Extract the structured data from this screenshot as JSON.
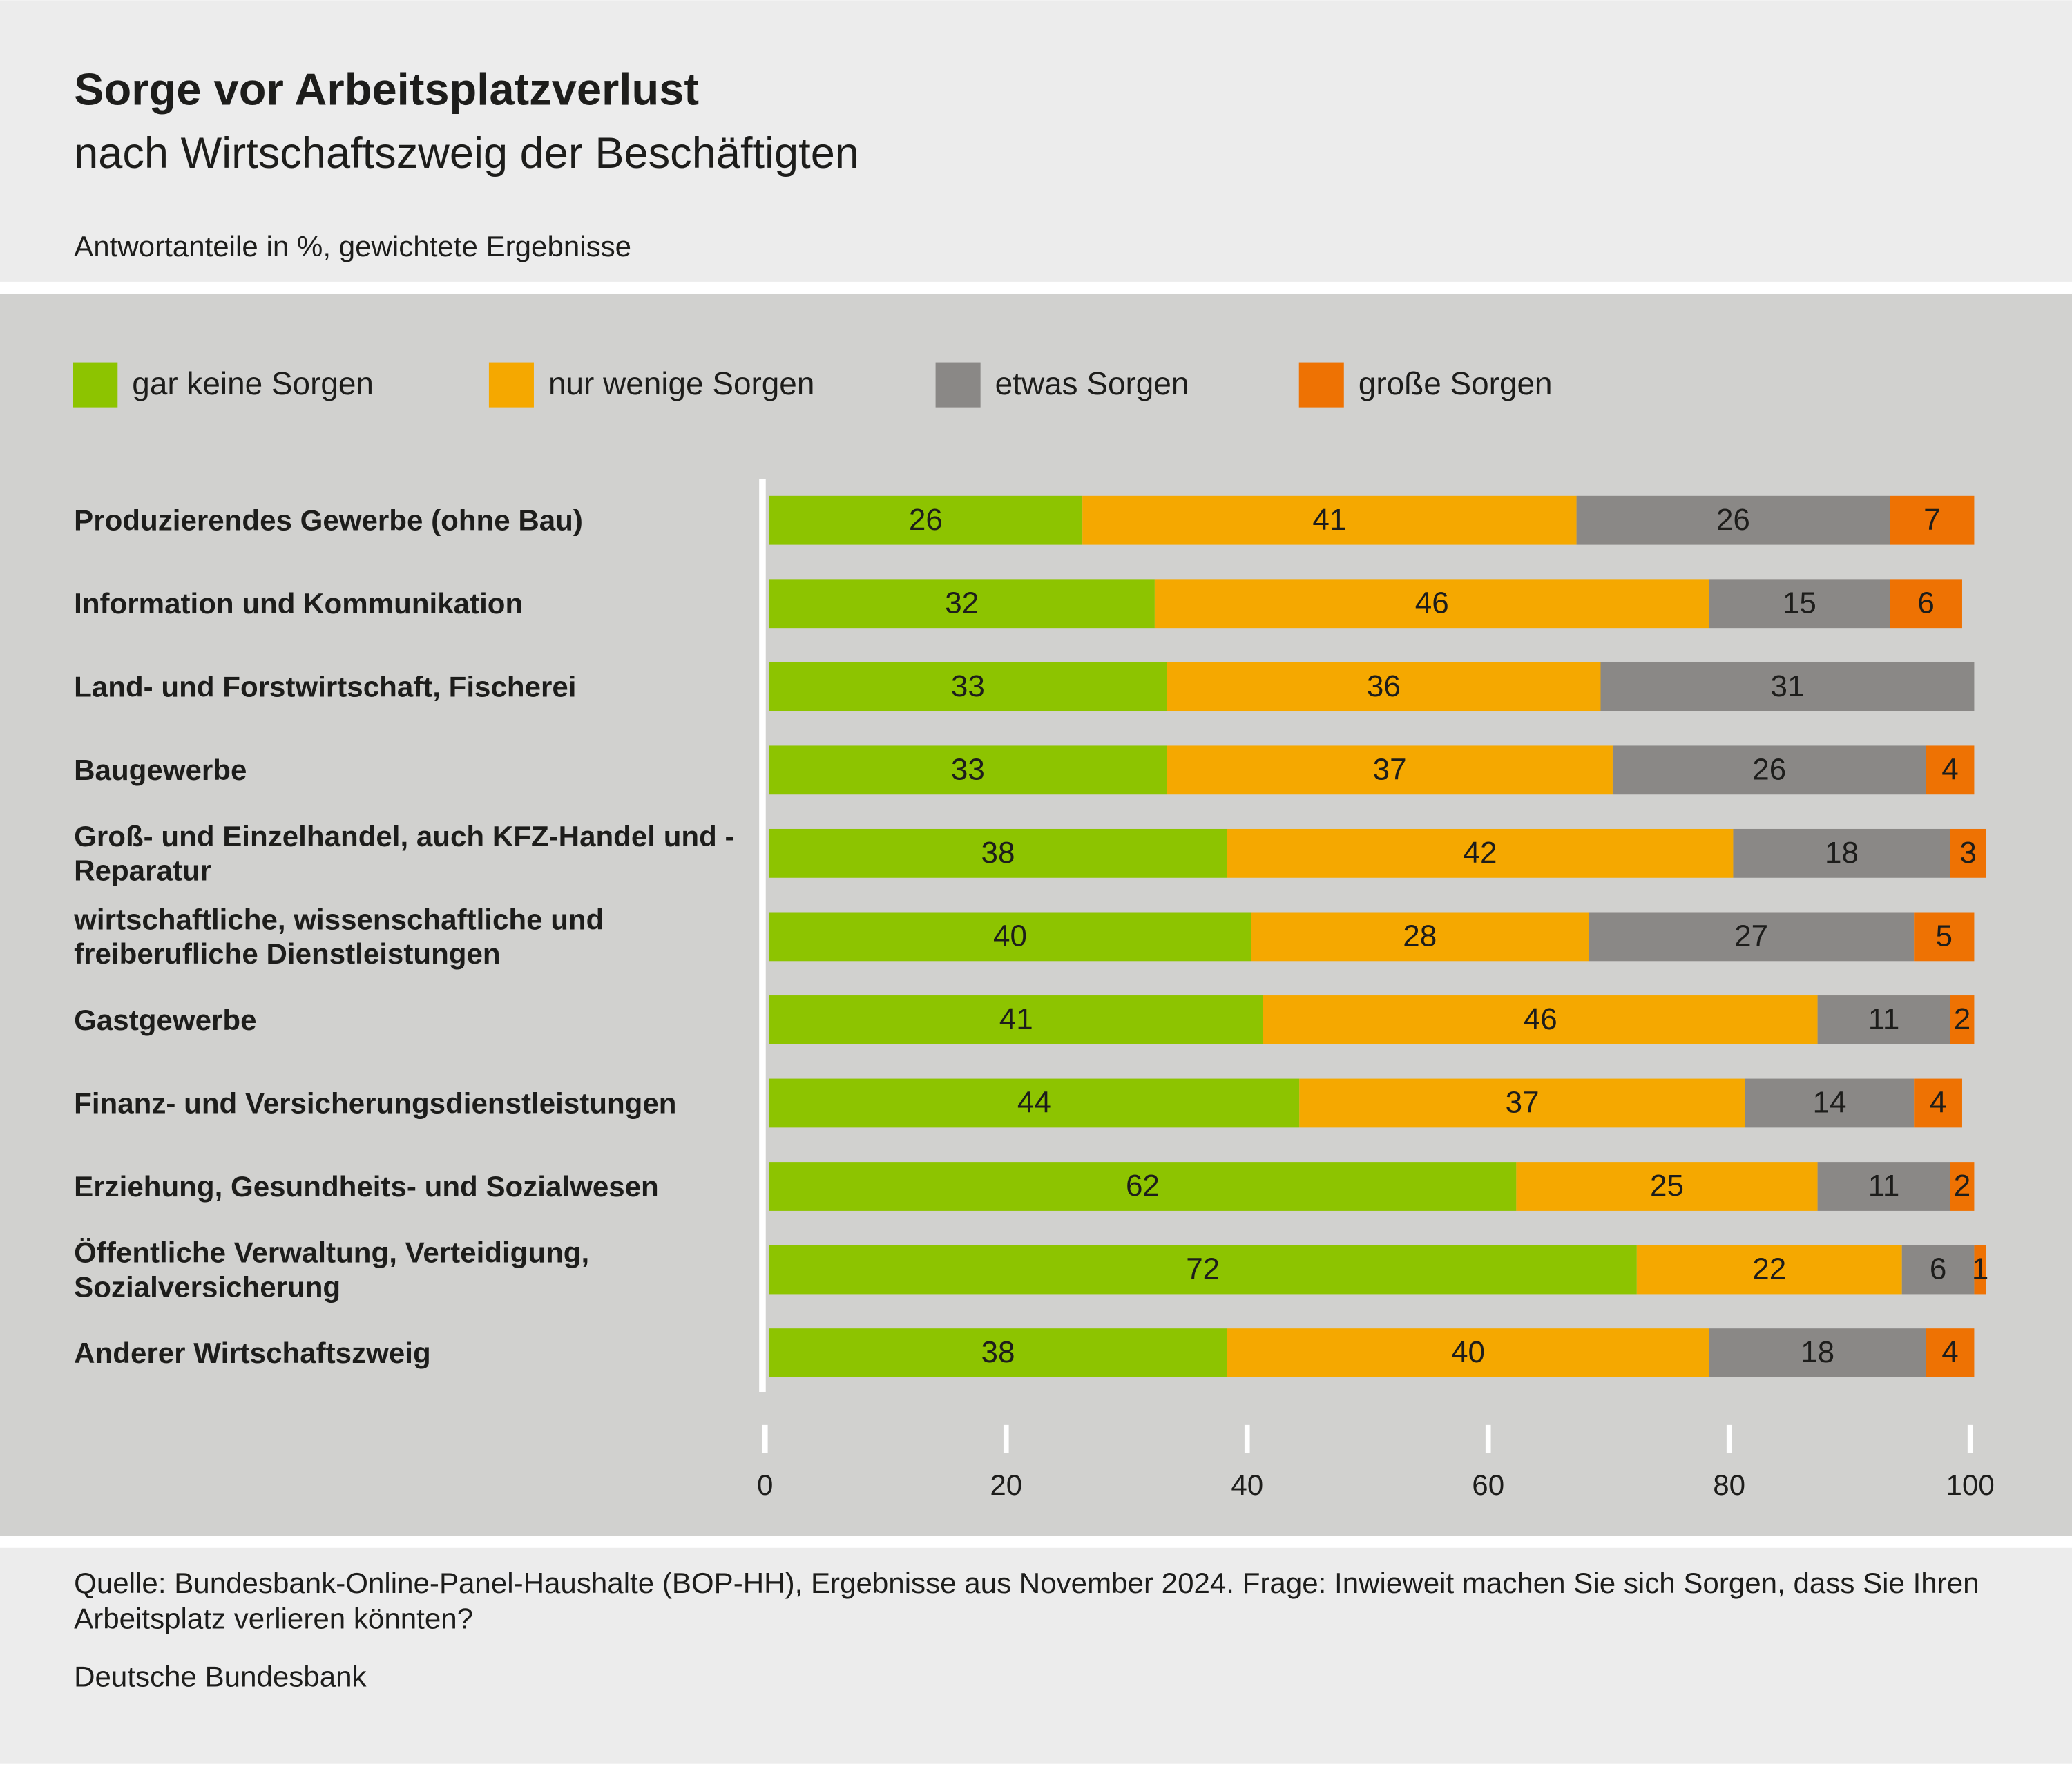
{
  "chart_data": {
    "type": "bar",
    "orientation": "horizontal",
    "stacked": true,
    "title": "Sorge vor Arbeitsplatzverlust",
    "subtitle": "nach Wirtschaftszweig der Beschäftigten",
    "note": "Antwortanteile in %, gewichtete Ergebnisse",
    "source": "Quelle: Bundesbank-Online-Panel-Haushalte (BOP-HH), Ergebnisse aus November 2024. Frage: Inwieweit machen Sie sich Sorgen, dass Sie Ihren Arbeitsplatz verlieren könnten?",
    "publisher": "Deutsche Bundesbank",
    "categories": [
      "Produzierendes Gewerbe (ohne Bau)",
      "Information und Kommunikation",
      "Land- und Forstwirtschaft, Fischerei",
      "Baugewerbe",
      "Groß- und Einzelhandel, auch KFZ-Handel und -Reparatur",
      "wirtschaftliche, wissenschaftliche und freiberufliche Dienstleistungen",
      "Gastgewerbe",
      "Finanz- und Versicherungsdienstleistungen",
      "Erziehung, Gesundheits- und Sozialwesen",
      "Öffentliche Verwaltung, Verteidigung, Sozialversicherung",
      "Anderer Wirtschaftszweig"
    ],
    "series": [
      {
        "name": "gar keine Sorgen",
        "color": "#8dc400",
        "values": [
          26,
          32,
          33,
          33,
          38,
          40,
          41,
          44,
          62,
          72,
          38
        ]
      },
      {
        "name": "nur wenige Sorgen",
        "color": "#f5a800",
        "values": [
          41,
          46,
          36,
          37,
          42,
          28,
          46,
          37,
          25,
          22,
          40
        ]
      },
      {
        "name": "etwas Sorgen",
        "color": "#8a8886",
        "values": [
          26,
          15,
          31,
          26,
          18,
          27,
          11,
          14,
          11,
          6,
          18
        ]
      },
      {
        "name": "große Sorgen",
        "color": "#ee7203",
        "values": [
          7,
          6,
          null,
          4,
          3,
          5,
          2,
          4,
          2,
          1,
          4
        ]
      }
    ],
    "xlim": [
      0,
      100
    ],
    "xticks": [
      0,
      20,
      40,
      60,
      80,
      100
    ],
    "legend": "top"
  }
}
